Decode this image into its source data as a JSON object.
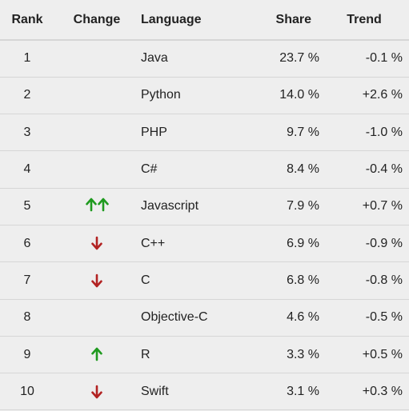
{
  "table": {
    "headers": {
      "rank": "Rank",
      "change": "Change",
      "language": "Language",
      "share": "Share",
      "trend": "Trend"
    },
    "rows": [
      {
        "rank": "1",
        "change": "none",
        "language": "Java",
        "share": "23.7 %",
        "trend": "-0.1 %"
      },
      {
        "rank": "2",
        "change": "none",
        "language": "Python",
        "share": "14.0 %",
        "trend": "+2.6 %"
      },
      {
        "rank": "3",
        "change": "none",
        "language": "PHP",
        "share": "9.7 %",
        "trend": "-1.0 %"
      },
      {
        "rank": "4",
        "change": "none",
        "language": "C#",
        "share": "8.4 %",
        "trend": "-0.4 %"
      },
      {
        "rank": "5",
        "change": "up-up",
        "language": "Javascript",
        "share": "7.9 %",
        "trend": "+0.7 %"
      },
      {
        "rank": "6",
        "change": "down",
        "language": "C++",
        "share": "6.9 %",
        "trend": "-0.9 %"
      },
      {
        "rank": "7",
        "change": "down",
        "language": "C",
        "share": "6.8 %",
        "trend": "-0.8 %"
      },
      {
        "rank": "8",
        "change": "none",
        "language": "Objective-C",
        "share": "4.6 %",
        "trend": "-0.5 %"
      },
      {
        "rank": "9",
        "change": "up",
        "language": "R",
        "share": "3.3 %",
        "trend": "+0.5 %"
      },
      {
        "rank": "10",
        "change": "down",
        "language": "Swift",
        "share": "3.1 %",
        "trend": "+0.3 %"
      }
    ]
  },
  "colors": {
    "up_arrow": "#1f9a1f",
    "down_arrow": "#b22222",
    "divider": "#d6d6d6",
    "background": "#eeeeee",
    "text": "#222222"
  },
  "icons": {
    "up": "arrow-up-icon",
    "down": "arrow-down-icon"
  }
}
